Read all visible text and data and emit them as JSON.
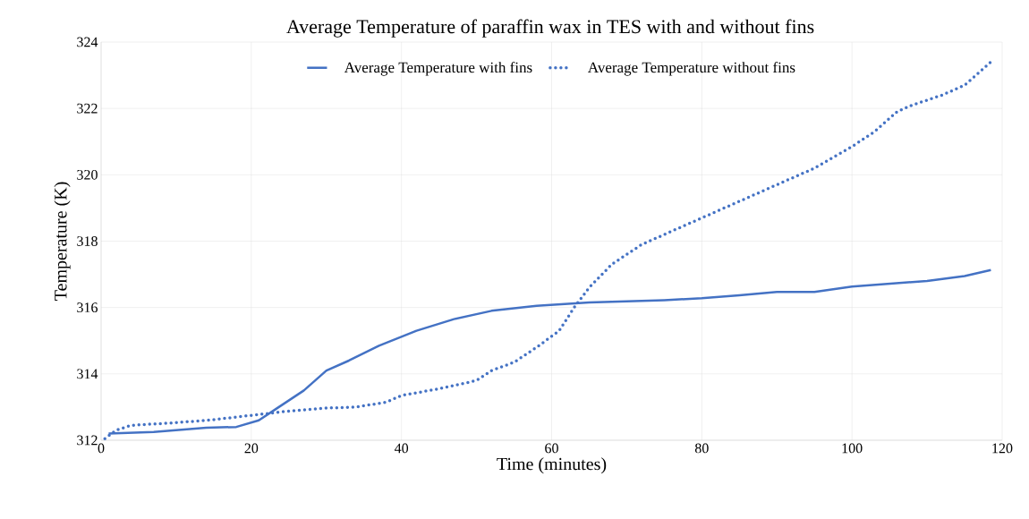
{
  "chart_data": {
    "type": "line",
    "title": "Average Temperature of paraffin wax in TES with and without fins",
    "xlabel": "Time (minutes)",
    "ylabel": "Temperature (K)",
    "xlim": [
      0,
      120
    ],
    "ylim": [
      312,
      324
    ],
    "xticks": [
      0,
      20,
      40,
      60,
      80,
      100,
      120
    ],
    "yticks": [
      312,
      314,
      316,
      318,
      320,
      322,
      324
    ],
    "grid": true,
    "legend": "top",
    "series": [
      {
        "name": "Average Temperature with fins",
        "color": "#4472c4",
        "line_style": "solid",
        "x": [
          1,
          7,
          14,
          18,
          21,
          23,
          27,
          30,
          33,
          37,
          42,
          47,
          52,
          58,
          65,
          75,
          80,
          85,
          90,
          95,
          100,
          110,
          115,
          118.5
        ],
        "values": [
          312.2,
          312.25,
          312.38,
          312.4,
          312.6,
          312.9,
          313.5,
          314.1,
          314.4,
          314.85,
          315.3,
          315.65,
          315.9,
          316.05,
          316.15,
          316.22,
          316.28,
          316.37,
          316.47,
          316.47,
          316.63,
          316.8,
          316.95,
          317.13
        ]
      },
      {
        "name": "Average Temperature without fins",
        "color": "#4472c4",
        "line_style": "dotted",
        "x": [
          0.5,
          2,
          4,
          10,
          15,
          20,
          25,
          30,
          34,
          38,
          40,
          45,
          50,
          52,
          55,
          58,
          61,
          63,
          65,
          68,
          72,
          76,
          80,
          85,
          90,
          95,
          100,
          103,
          106,
          108,
          112,
          115,
          118.5
        ],
        "values": [
          312.05,
          312.3,
          312.45,
          312.53,
          312.62,
          312.75,
          312.88,
          312.97,
          313.0,
          313.15,
          313.35,
          313.55,
          313.8,
          314.1,
          314.35,
          314.8,
          315.3,
          316.0,
          316.6,
          317.3,
          317.9,
          318.3,
          318.7,
          319.2,
          319.7,
          320.2,
          320.85,
          321.3,
          321.9,
          322.1,
          322.4,
          322.7,
          323.4
        ]
      }
    ]
  }
}
